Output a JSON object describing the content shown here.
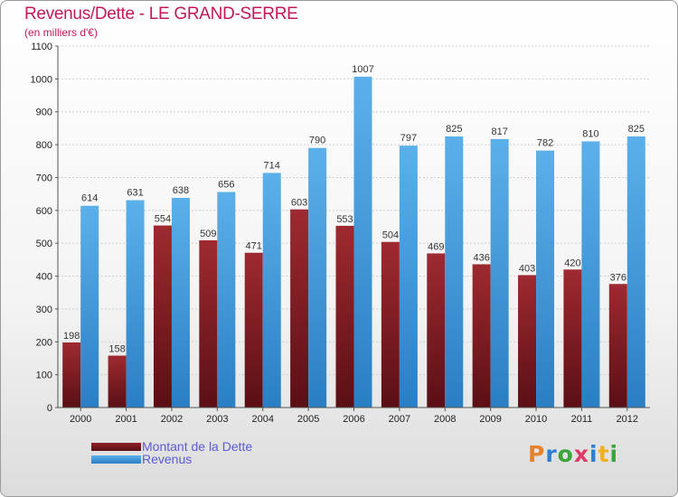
{
  "title": "Revenus/Dette - LE GRAND-SERRE",
  "subtitle": "(en milliers d'€)",
  "chart_data": {
    "type": "bar",
    "categories": [
      "2000",
      "2001",
      "2002",
      "2003",
      "2004",
      "2005",
      "2006",
      "2007",
      "2008",
      "2009",
      "2010",
      "2011",
      "2012"
    ],
    "series": [
      {
        "name": "Montant de la Dette",
        "color": "#7b1a22",
        "values": [
          198,
          158,
          554,
          509,
          471,
          603,
          553,
          504,
          469,
          436,
          403,
          420,
          376
        ]
      },
      {
        "name": "Revenus",
        "color": "#4ea6e6",
        "values": [
          614,
          631,
          638,
          656,
          714,
          790,
          1007,
          797,
          825,
          817,
          782,
          810,
          825
        ]
      }
    ],
    "ylim": [
      0,
      1100
    ],
    "yticks": [
      0,
      100,
      200,
      300,
      400,
      500,
      600,
      700,
      800,
      900,
      1000,
      1100
    ],
    "grid": true,
    "legend_position": "bottom-left"
  },
  "legend": {
    "debt_label": "Montant de la Dette",
    "revenue_label": "Revenus"
  },
  "brand": {
    "name": "Proxiti",
    "colors": [
      "#e8822a",
      "#2e7fd0",
      "#3aa53a",
      "#e03a6a",
      "#2e7fd0",
      "#f0b020",
      "#3aa53a"
    ]
  }
}
